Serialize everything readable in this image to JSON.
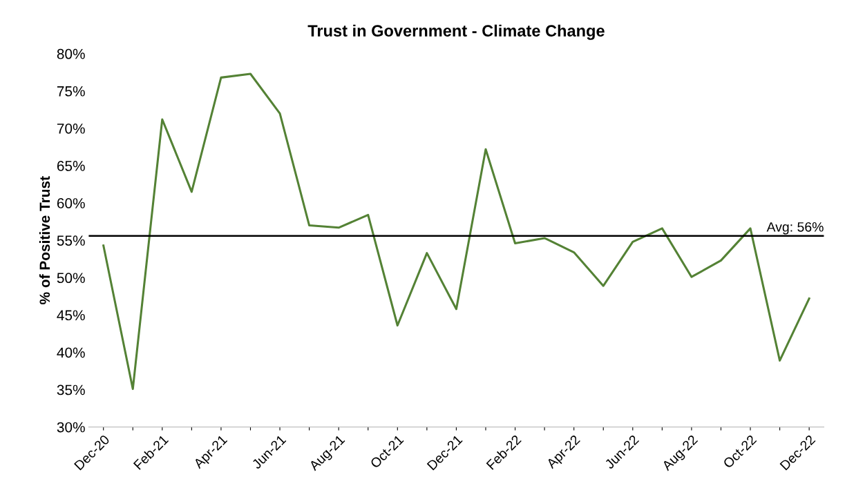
{
  "chart_data": {
    "type": "line",
    "title": "Trust in Government - Climate Change",
    "ylabel": "% of Positive Trust",
    "categories": [
      "Dec-20",
      null,
      "Feb-21",
      null,
      "Apr-21",
      null,
      "Jun-21",
      null,
      "Aug-21",
      null,
      "Oct-21",
      null,
      "Dec-21",
      null,
      "Feb-22",
      null,
      "Apr-22",
      null,
      "Jun-22",
      null,
      "Aug-22",
      null,
      "Oct-22",
      null,
      "Dec-22"
    ],
    "series": [
      {
        "color": "#548235",
        "values": [
          54.3,
          35.1,
          71.2,
          61.5,
          76.8,
          77.3,
          72.0,
          57.0,
          56.7,
          58.4,
          43.6,
          53.3,
          45.8,
          67.2,
          54.6,
          55.3,
          53.4,
          48.9,
          54.8,
          56.6,
          50.1,
          52.3,
          56.6,
          38.9,
          47.2
        ]
      }
    ],
    "ylim": [
      30,
      80
    ],
    "yticks": [
      {
        "value": 30,
        "label": "30%"
      },
      {
        "value": 35,
        "label": "35%"
      },
      {
        "value": 40,
        "label": "40%"
      },
      {
        "value": 45,
        "label": "45%"
      },
      {
        "value": 50,
        "label": "50%"
      },
      {
        "value": 55,
        "label": "55%"
      },
      {
        "value": 60,
        "label": "60%"
      },
      {
        "value": 65,
        "label": "65%"
      },
      {
        "value": 70,
        "label": "70%"
      },
      {
        "value": 75,
        "label": "75%"
      },
      {
        "value": 80,
        "label": "80%"
      }
    ],
    "ref_lines": [
      {
        "axis": "y",
        "value": 55.6,
        "label": "Avg: 56%",
        "color": "#000000"
      }
    ],
    "grid": false,
    "legend": false,
    "marker": "none",
    "line_style": "solid"
  }
}
